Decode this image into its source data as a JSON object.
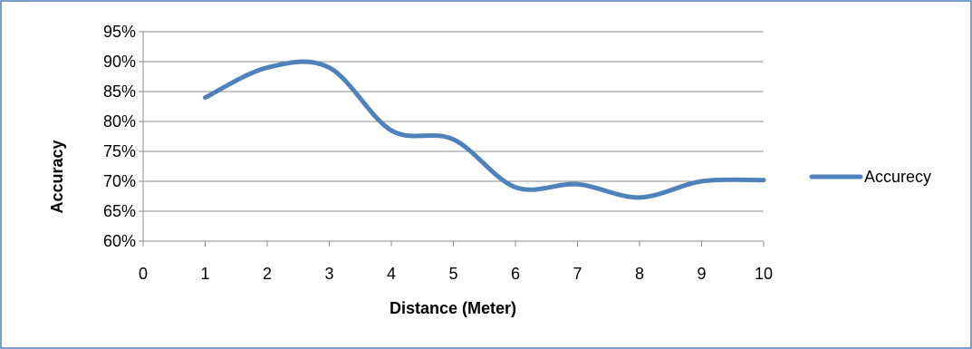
{
  "chart_data": {
    "type": "line",
    "title": "",
    "xlabel": "Distance (Meter)",
    "ylabel": "Accuracy",
    "xlim": [
      0,
      10
    ],
    "ylim": [
      0.6,
      0.95
    ],
    "x_ticks": [
      0,
      1,
      2,
      3,
      4,
      5,
      6,
      7,
      8,
      9,
      10
    ],
    "x_tick_labels": [
      "0",
      "1",
      "2",
      "3",
      "4",
      "5",
      "6",
      "7",
      "8",
      "9",
      "10"
    ],
    "y_ticks": [
      0.6,
      0.65,
      0.7,
      0.75,
      0.8,
      0.85,
      0.9,
      0.95
    ],
    "y_tick_labels": [
      "60%",
      "65%",
      "70%",
      "75%",
      "80%",
      "85%",
      "90%",
      "95%"
    ],
    "grid": "horizontal",
    "smooth": true,
    "legend_position": "right",
    "series": [
      {
        "name": "Accurecy",
        "color": "#4F81BD",
        "x": [
          1,
          2,
          3,
          4,
          5,
          6,
          7,
          8,
          9,
          10
        ],
        "values": [
          0.84,
          0.89,
          0.89,
          0.785,
          0.77,
          0.69,
          0.695,
          0.673,
          0.7,
          0.702
        ]
      }
    ],
    "border_color": "#4F81BD"
  }
}
